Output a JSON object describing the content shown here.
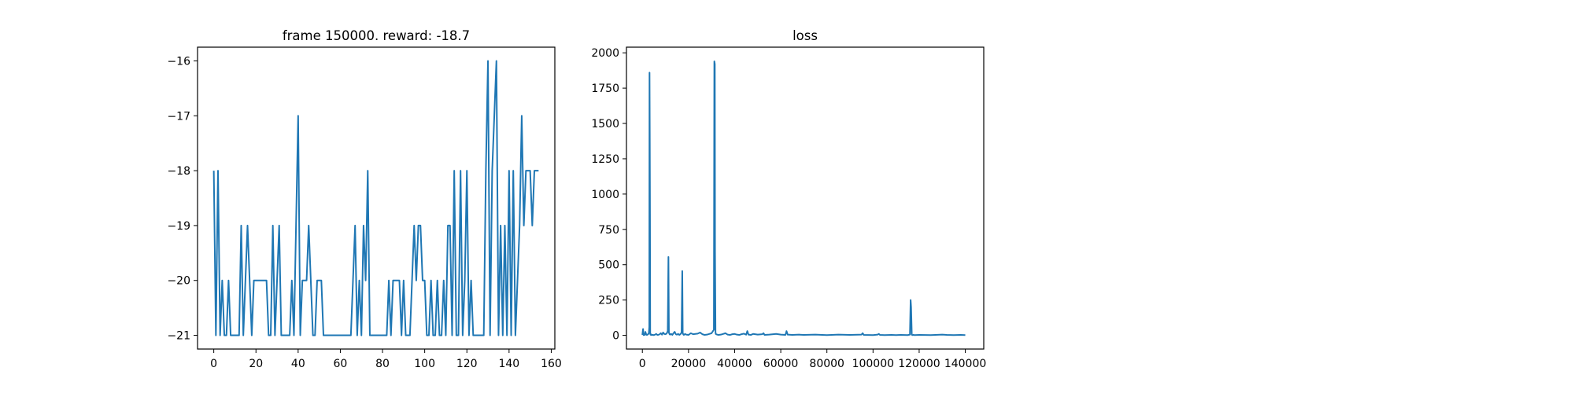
{
  "chart_data": [
    {
      "type": "line",
      "title": "frame 150000. reward: -18.7",
      "xlabel": "",
      "ylabel": "",
      "xlim": [
        -7.7,
        161.7
      ],
      "ylim": [
        -21.25,
        -15.75
      ],
      "xticks": [
        0,
        20,
        40,
        60,
        80,
        100,
        120,
        140,
        160
      ],
      "xtick_labels": [
        "0",
        "20",
        "40",
        "60",
        "80",
        "100",
        "120",
        "140",
        "160"
      ],
      "yticks": [
        -21,
        -20,
        -19,
        -18,
        -17,
        -16
      ],
      "ytick_labels": [
        "−21",
        "−20",
        "−19",
        "−18",
        "−17",
        "−16"
      ],
      "grid": false,
      "color": "#1f77b4",
      "series": [
        {
          "x": [
            0,
            1,
            2,
            3,
            4,
            5,
            6,
            7,
            8,
            9,
            10,
            11,
            12,
            13,
            14,
            15,
            16,
            17,
            18,
            19,
            20,
            21,
            22,
            23,
            24,
            25,
            26,
            27,
            28,
            29,
            30,
            31,
            32,
            33,
            34,
            35,
            36,
            37,
            38,
            39,
            40,
            41,
            42,
            43,
            44,
            45,
            46,
            47,
            48,
            49,
            50,
            51,
            52,
            53,
            54,
            55,
            56,
            57,
            58,
            59,
            60,
            61,
            62,
            63,
            64,
            65,
            66,
            67,
            68,
            69,
            70,
            71,
            72,
            73,
            74,
            75,
            76,
            77,
            78,
            79,
            80,
            81,
            82,
            83,
            84,
            85,
            86,
            87,
            88,
            89,
            90,
            91,
            92,
            93,
            94,
            95,
            96,
            97,
            98,
            99,
            100,
            101,
            102,
            103,
            104,
            105,
            106,
            107,
            108,
            109,
            110,
            111,
            112,
            113,
            114,
            115,
            116,
            117,
            118,
            119,
            120,
            121,
            122,
            123,
            124,
            125,
            126,
            127,
            128,
            129,
            130,
            131,
            132,
            133,
            134,
            135,
            136,
            137,
            138,
            139,
            140,
            141,
            142,
            143,
            144,
            145,
            146,
            147,
            148,
            149,
            150,
            151,
            152,
            153,
            154
          ],
          "y": [
            -18,
            -21,
            -18,
            -21,
            -20,
            -21,
            -21,
            -20,
            -21,
            -21,
            -21,
            -21,
            -21,
            -19,
            -21,
            -20,
            -19,
            -20,
            -21,
            -20,
            -20,
            -20,
            -20,
            -20,
            -20,
            -20,
            -21,
            -21,
            -19,
            -21,
            -20,
            -19,
            -21,
            -21,
            -21,
            -21,
            -21,
            -20,
            -21,
            -19,
            -17,
            -21,
            -20,
            -20,
            -20,
            -19,
            -20,
            -21,
            -21,
            -20,
            -20,
            -20,
            -21,
            -21,
            -21,
            -21,
            -21,
            -21,
            -21,
            -21,
            -21,
            -21,
            -21,
            -21,
            -21,
            -21,
            -20,
            -19,
            -21,
            -20,
            -21,
            -19,
            -20,
            -18,
            -21,
            -21,
            -21,
            -21,
            -21,
            -21,
            -21,
            -21,
            -21,
            -20,
            -21,
            -20,
            -20,
            -20,
            -20,
            -21,
            -20,
            -21,
            -21,
            -21,
            -20,
            -19,
            -20,
            -19,
            -19,
            -20,
            -20,
            -21,
            -21,
            -20,
            -21,
            -21,
            -20,
            -21,
            -21,
            -20,
            -21,
            -19,
            -19,
            -21,
            -18,
            -21,
            -21,
            -18,
            -21,
            -20,
            -18,
            -21,
            -20,
            -21,
            -21,
            -21,
            -21,
            -21,
            -21,
            -18,
            -16,
            -21,
            -18,
            -17,
            -16,
            -21,
            -19,
            -21,
            -19,
            -21,
            -18,
            -21,
            -18,
            -21,
            -20,
            -19,
            -17,
            -19,
            -18,
            -18,
            -18,
            -19,
            -18,
            -18,
            -18
          ]
        }
      ]
    },
    {
      "type": "line",
      "title": "loss",
      "xlabel": "",
      "ylabel": "",
      "xlim": [
        -6900,
        148000
      ],
      "ylim": [
        -97,
        2040
      ],
      "xticks": [
        0,
        20000,
        40000,
        60000,
        80000,
        100000,
        120000,
        140000
      ],
      "xtick_labels": [
        "0",
        "20000",
        "40000",
        "60000",
        "80000",
        "100000",
        "120000",
        "140000"
      ],
      "yticks": [
        0,
        250,
        500,
        750,
        1000,
        1250,
        1500,
        1750,
        2000
      ],
      "ytick_labels": [
        "0",
        "250",
        "500",
        "750",
        "1000",
        "1250",
        "1500",
        "1750",
        "2000"
      ],
      "grid": false,
      "color": "#1f77b4",
      "series": [
        {
          "x": [
            0,
            300,
            500,
            700,
            1000,
            1300,
            1700,
            2000,
            2500,
            2800,
            3000,
            3100,
            3200,
            3300,
            3400,
            3500,
            3600,
            3700,
            4000,
            4500,
            5000,
            5500,
            6000,
            6500,
            7000,
            7500,
            8000,
            8500,
            9000,
            9500,
            10000,
            10500,
            11000,
            11300,
            11500,
            11800,
            12000,
            12500,
            13000,
            13500,
            14000,
            14500,
            15000,
            15500,
            16000,
            16500,
            17000,
            17300,
            17500,
            17800,
            18000,
            18500,
            19000,
            20000,
            21000,
            22000,
            23000,
            24000,
            25000,
            26000,
            27000,
            28000,
            29000,
            30000,
            31000,
            31200,
            31400,
            31500,
            31700,
            31800,
            32000,
            32500,
            33000,
            34000,
            35000,
            36000,
            37000,
            38000,
            39000,
            40000,
            41000,
            42000,
            43000,
            44000,
            45000,
            45500,
            46000,
            47000,
            48000,
            50000,
            52000,
            52500,
            53000,
            55000,
            58000,
            60000,
            62000,
            62500,
            63000,
            65000,
            68000,
            70000,
            75000,
            80000,
            85000,
            90000,
            95000,
            95500,
            96000,
            100000,
            102000,
            102500,
            103000,
            105000,
            108000,
            110000,
            112000,
            115000,
            116000,
            116300,
            116500,
            116800,
            117000,
            117500,
            118000,
            120000,
            125000,
            130000,
            132000,
            135000,
            138000,
            140000
          ],
          "y": [
            3,
            45,
            2,
            10,
            3,
            25,
            5,
            3,
            8,
            15,
            60,
            1860,
            1430,
            860,
            20,
            5,
            10,
            3,
            4,
            3,
            2,
            5,
            10,
            3,
            4,
            8,
            15,
            5,
            20,
            10,
            8,
            12,
            30,
            555,
            20,
            8,
            5,
            10,
            3,
            15,
            25,
            8,
            5,
            10,
            3,
            8,
            20,
            455,
            15,
            5,
            3,
            10,
            5,
            3,
            15,
            8,
            10,
            12,
            20,
            8,
            3,
            5,
            10,
            15,
            40,
            1940,
            1920,
            590,
            25,
            10,
            8,
            5,
            3,
            5,
            10,
            15,
            5,
            3,
            8,
            10,
            5,
            3,
            8,
            12,
            5,
            30,
            5,
            3,
            10,
            5,
            8,
            15,
            3,
            5,
            10,
            5,
            3,
            30,
            5,
            3,
            5,
            3,
            5,
            2,
            5,
            3,
            5,
            15,
            3,
            2,
            5,
            10,
            3,
            2,
            3,
            2,
            3,
            2,
            5,
            250,
            200,
            5,
            2,
            3,
            2,
            3,
            2,
            5,
            3,
            2,
            3,
            2
          ]
        }
      ]
    }
  ]
}
